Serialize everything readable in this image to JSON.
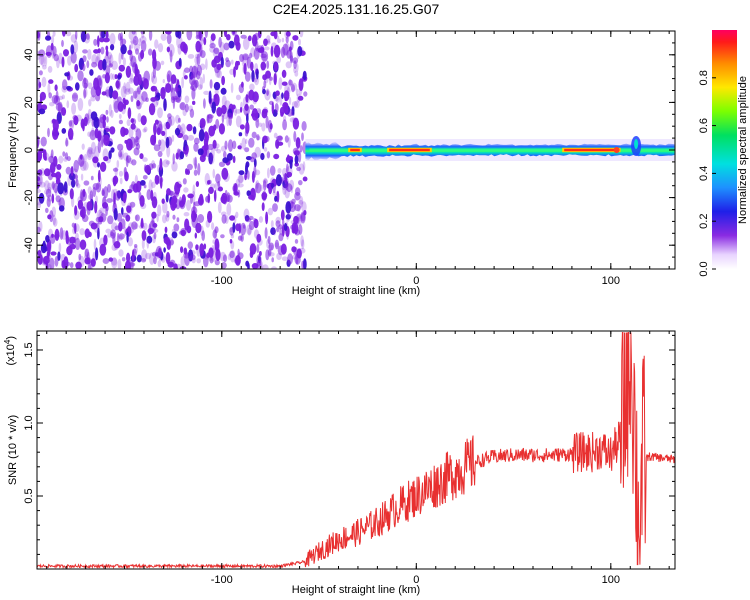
{
  "title": "C2E4.2025.131.16.25.G07",
  "colors": {
    "spectrogram_noise": "#7a1fe0",
    "line_color": "#e83030",
    "frame": "#000000"
  },
  "chart_data": [
    {
      "type": "heatmap",
      "name": "spectrogram",
      "xlabel": "Height of straight line (km)",
      "ylabel": "Frequency (Hz)",
      "xlim": [
        -195,
        133
      ],
      "ylim": [
        -50,
        50
      ],
      "xticks": [
        -100,
        0,
        100
      ],
      "xtick_labels": [
        "-100",
        "0",
        "100"
      ],
      "yticks": [
        -40,
        -20,
        0,
        20,
        40
      ],
      "ytick_labels": [
        "-40",
        "-20",
        "0",
        "20",
        "40"
      ],
      "grid": false,
      "colorbar": {
        "label": "Normalized spectral amplitude",
        "range": [
          0,
          1
        ],
        "ticks": [
          0.0,
          0.2,
          0.4,
          0.6,
          0.8
        ],
        "tick_labels": [
          "0.0",
          "0.2",
          "0.4",
          "0.6",
          "0.8"
        ],
        "colormap": "rainbow"
      },
      "features": {
        "noise_region_x": [
          -195,
          -57
        ],
        "signal_start_x": -57,
        "signal_center_freq": 0,
        "strong_segments_x": [
          [
            -35,
            -28
          ],
          [
            -15,
            8
          ],
          [
            75,
            105
          ]
        ],
        "burst_x": 113
      }
    },
    {
      "type": "line",
      "name": "snr",
      "xlabel": "Height of straight line (km)",
      "ylabel": "SNR (10 * v/v)",
      "yscale_label": "(x10",
      "yscale_exp": "4",
      "xlim": [
        -195,
        133
      ],
      "ylim": [
        0,
        1.63
      ],
      "xticks": [
        -100,
        0,
        100
      ],
      "xtick_labels": [
        "-100",
        "0",
        "100"
      ],
      "yticks": [
        0.5,
        1.0,
        1.5
      ],
      "ytick_labels": [
        "0.5",
        "1.0",
        "1.5"
      ],
      "grid": false,
      "series": [
        {
          "x": [
            -195,
            -150,
            -100,
            -70,
            -57,
            -50,
            -40,
            -30,
            -20,
            -10,
            0,
            10,
            20,
            30,
            40,
            50,
            60,
            70,
            80,
            85,
            90,
            95,
            100,
            105,
            108,
            110,
            112,
            114,
            117,
            120,
            133
          ],
          "y": [
            0.02,
            0.02,
            0.02,
            0.02,
            0.05,
            0.12,
            0.2,
            0.25,
            0.32,
            0.42,
            0.5,
            0.58,
            0.66,
            0.73,
            0.77,
            0.78,
            0.78,
            0.78,
            0.79,
            0.8,
            0.8,
            0.82,
            0.78,
            0.9,
            1.3,
            1.6,
            1.1,
            0.3,
            0.75,
            0.77,
            0.75
          ]
        }
      ]
    }
  ]
}
